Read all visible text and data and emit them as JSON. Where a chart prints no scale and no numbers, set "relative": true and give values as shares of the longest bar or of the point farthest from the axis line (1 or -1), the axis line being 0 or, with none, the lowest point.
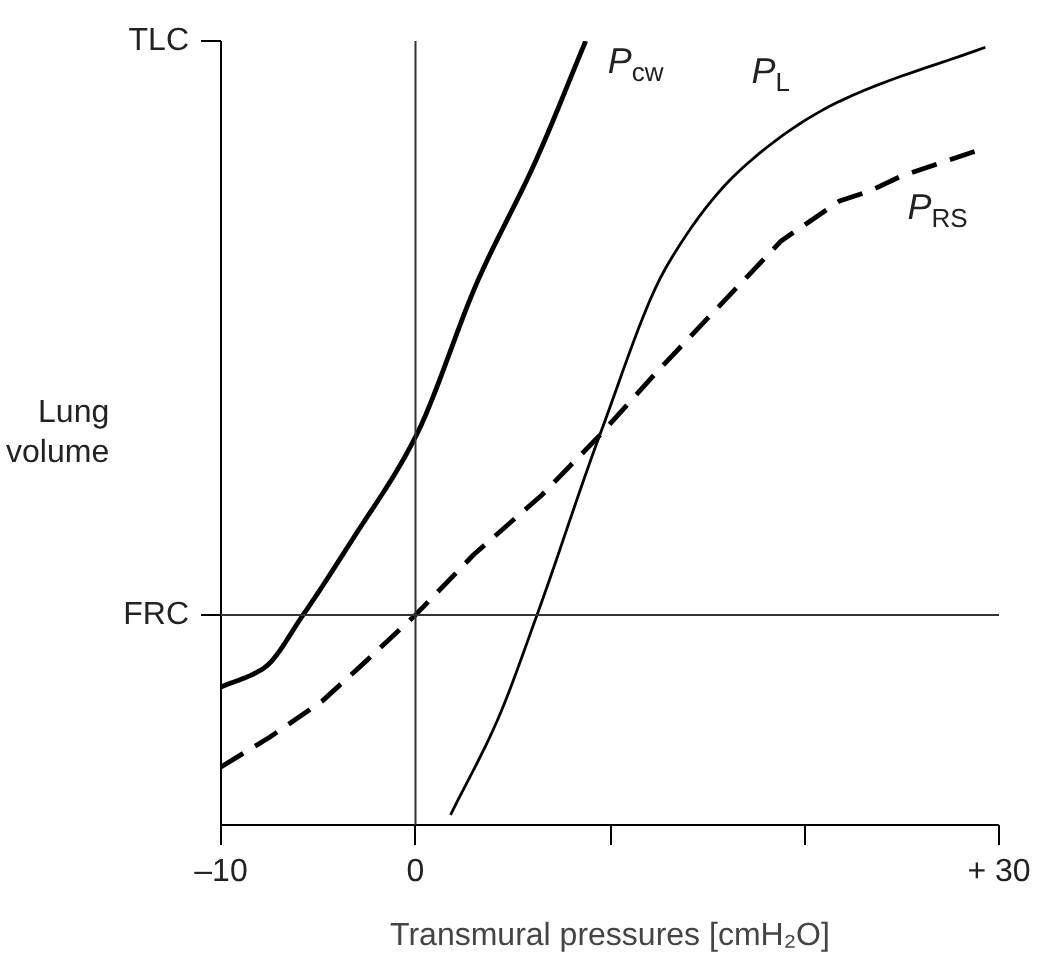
{
  "chart_data": {
    "type": "line",
    "relative": true,
    "xlabel": "Transmural pressures [cmH₂O]",
    "ylabel": "Lung volume",
    "xlim": [
      -10,
      30
    ],
    "xticks": [
      {
        "value": -10,
        "label": "–10"
      },
      0,
      {
        "value": 10,
        "label": null
      },
      {
        "value": 20,
        "label": null
      },
      {
        "value": 30,
        "label": "+ 30"
      }
    ],
    "series": [
      {
        "name": "P$_{cw}$",
        "color": "#000000",
        "line_style": "solid",
        "x": [
          -10,
          -7.8,
          -5.78,
          -3.3,
          0,
          3.2,
          6.18,
          8.75
        ],
        "values": [
          0.176,
          0.2,
          0.268,
          0.362,
          0.495,
          0.694,
          0.847,
          1
        ]
      },
      {
        "name": "P$_{L}$",
        "color": "#000000",
        "line_style": "solid",
        "x": [
          1.8,
          4.2,
          6.25,
          9.47,
          12.9,
          16.85,
          21.8,
          29.3
        ],
        "values": [
          0.013,
          0.133,
          0.268,
          0.497,
          0.712,
          0.839,
          0.923,
          0.992
        ]
      },
      {
        "name": "P$_{RS}$",
        "color": "#000000",
        "line_style": "dashed",
        "x": [
          -10,
          -7.5,
          -4.8,
          -2.5,
          0,
          3,
          6.5,
          9.47,
          12.3,
          15.2,
          18.8,
          21.8,
          23.4,
          25,
          29.1
        ],
        "values": [
          0.074,
          0.112,
          0.158,
          0.21,
          0.268,
          0.345,
          0.421,
          0.497,
          0.575,
          0.651,
          0.745,
          0.796,
          0.809,
          0.828,
          0.862
        ]
      }
    ],
    "ref_lines": [
      {
        "axis": "y",
        "value": 0.268,
        "label": "FRC"
      },
      {
        "axis": "x",
        "value": 0,
        "label": null
      }
    ],
    "annotations": [
      "TLC"
    ],
    "grid": false,
    "marker": "none"
  }
}
